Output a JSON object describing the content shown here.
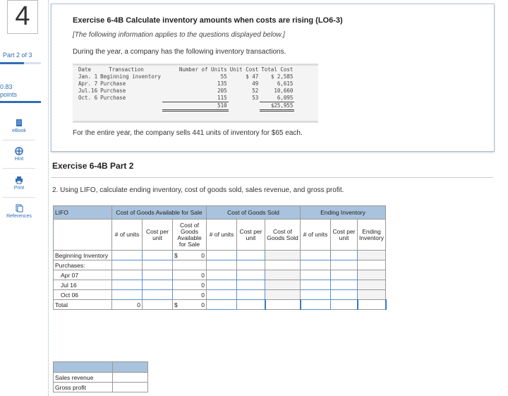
{
  "sidebar": {
    "question_number": "4",
    "part": "Part 2 of 3",
    "points_value": "0.83",
    "points_label": "points",
    "tools": [
      {
        "label": "eBook",
        "icon": "book-icon"
      },
      {
        "label": "Hint",
        "icon": "hint-icon"
      },
      {
        "label": "Print",
        "icon": "print-icon"
      },
      {
        "label": "References",
        "icon": "references-icon"
      }
    ]
  },
  "question": {
    "title": "Exercise 6-4B Calculate inventory amounts when costs are rising (LO6-3)",
    "info": "[The following information applies to the questions displayed below.]",
    "intro": "During the year, a company has the following inventory transactions.",
    "transactions_header": {
      "date": "Date",
      "transaction": "Transaction",
      "units": "Number of Units",
      "unit_cost": "Unit Cost",
      "total_cost": "Total Cost"
    },
    "transactions": [
      {
        "date": "Jan. 1",
        "transaction": "Beginning inventory",
        "units": "55",
        "unit_cost": "$ 47",
        "total_cost": "$ 2,585"
      },
      {
        "date": "Apr. 7",
        "transaction": "Purchase",
        "units": "135",
        "unit_cost": "49",
        "total_cost": "6,615"
      },
      {
        "date": "Jul.16",
        "transaction": "Purchase",
        "units": "205",
        "unit_cost": "52",
        "total_cost": "10,660"
      },
      {
        "date": "Oct. 6",
        "transaction": "Purchase",
        "units": "115",
        "unit_cost": "53",
        "total_cost": "6,095"
      }
    ],
    "total_units": "510",
    "total_cost": "$25,955",
    "sells": "For the entire year, the company sells 441 units of inventory for $65 each."
  },
  "part2": {
    "title": "Exercise 6-4B Part 2",
    "question": "2. Using LIFO, calculate ending inventory, cost of goods sold, sales revenue, and gross profit.",
    "table": {
      "method": "LIFO",
      "groups": [
        "Cost of Goods Available for Sale",
        "Cost of Goods Sold",
        "Ending Inventory"
      ],
      "subheaders": {
        "units": "# of units",
        "cost_per_unit": "Cost per unit",
        "cogas": "Cost of Goods Available for Sale",
        "cogs_cost": "Cost per unit",
        "cogs": "Cost of Goods Sold",
        "ei_cost": "Cost per unit",
        "ei": "Ending Inventory"
      },
      "rows": [
        {
          "label": "Beginning Inventory",
          "dollar": "$",
          "cogas": "0"
        },
        {
          "label": "Purchases:",
          "dollar": "",
          "cogas": ""
        },
        {
          "label": "Apr 07",
          "dollar": "",
          "cogas": "0"
        },
        {
          "label": "Jul 16",
          "dollar": "",
          "cogas": "0"
        },
        {
          "label": "Oct 06",
          "dollar": "",
          "cogas": "0"
        }
      ],
      "total": {
        "label": "Total",
        "units": "0",
        "dollar": "$",
        "cogas": "0"
      }
    },
    "summary": [
      {
        "label": "Sales revenue"
      },
      {
        "label": "Gross profit"
      }
    ]
  }
}
